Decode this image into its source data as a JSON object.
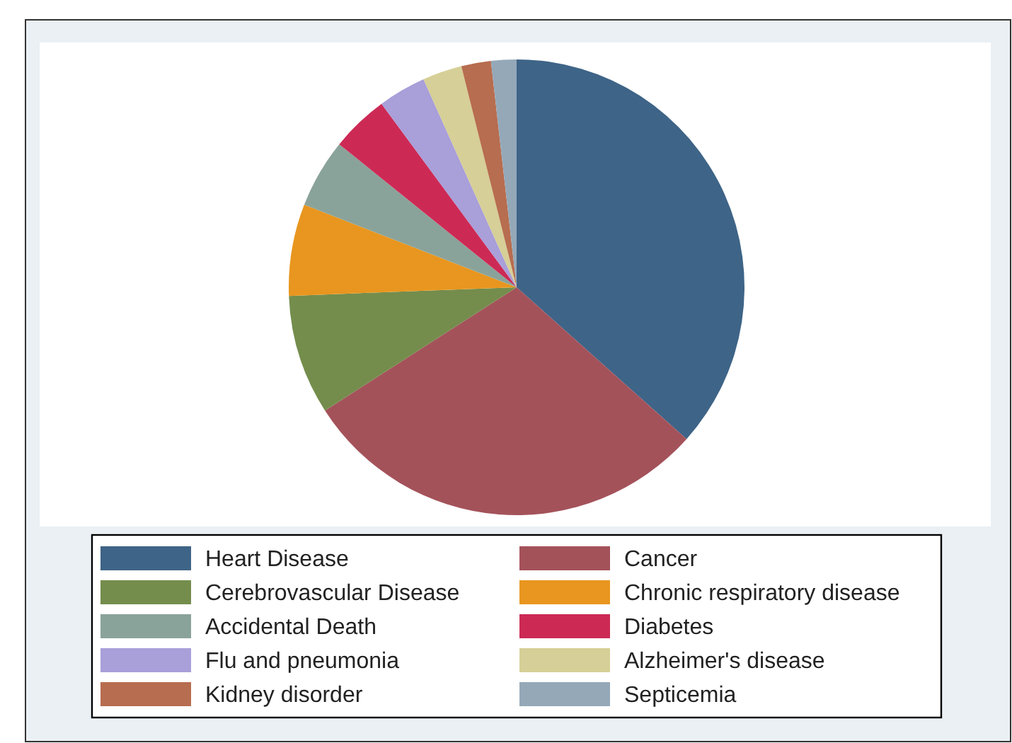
{
  "chart_data": {
    "type": "pie",
    "categories": [
      "Heart Disease",
      "Cancer",
      "Cerebrovascular Disease",
      "Chronic respiratory disease",
      "Accidental Death",
      "Diabetes",
      "Flu and pneumonia",
      "Alzheimer's disease",
      "Kidney disorder",
      "Septicemia"
    ],
    "values": [
      36.6,
      29.3,
      8.5,
      6.5,
      4.9,
      4.1,
      3.4,
      2.8,
      2.1,
      1.8
    ],
    "colors": [
      "#3e6487",
      "#a4525a",
      "#748d4c",
      "#e8961f",
      "#8aa39a",
      "#cc2a55",
      "#a99fd9",
      "#d6cf97",
      "#b76d4f",
      "#94a8b8"
    ],
    "legend": "bottom"
  }
}
